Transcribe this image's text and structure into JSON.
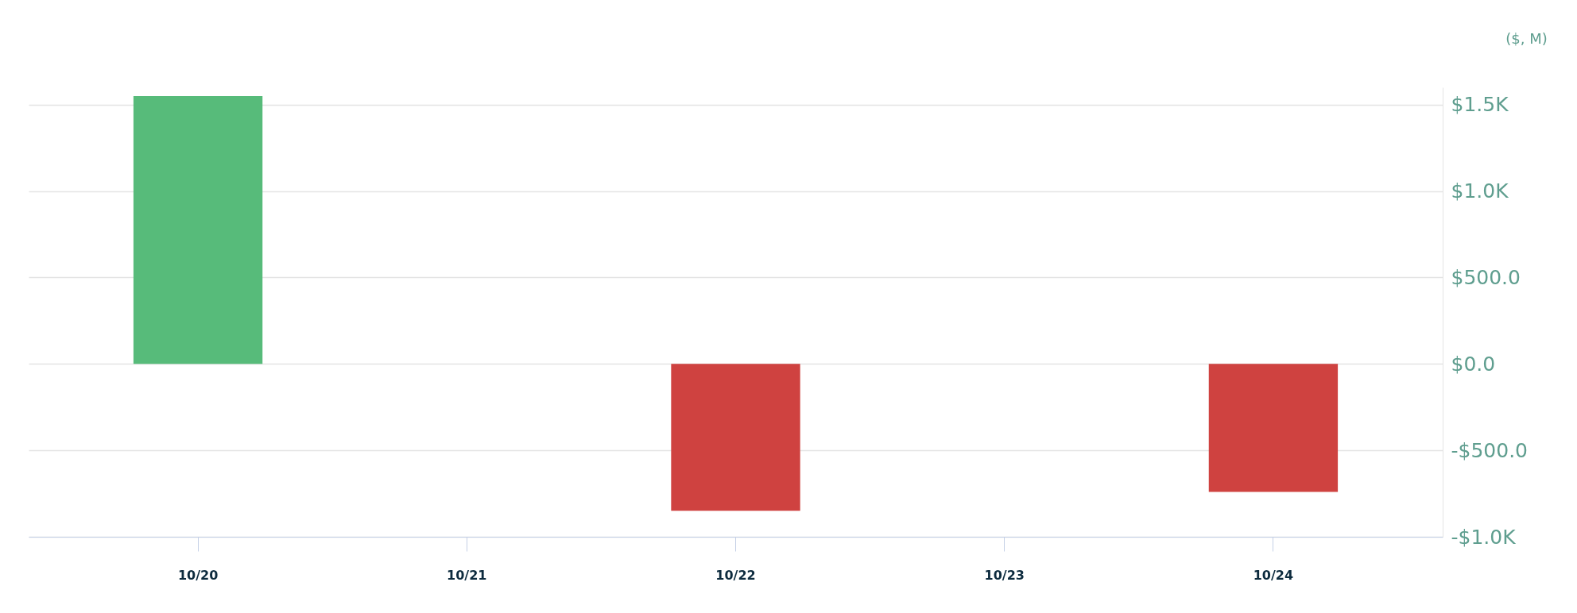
{
  "chart_data": {
    "type": "bar",
    "ylabel": "($, M)",
    "categories": [
      "10/20",
      "10/21",
      "10/22",
      "10/23",
      "10/24"
    ],
    "values": [
      1550,
      null,
      -850,
      null,
      -740
    ],
    "colors": [
      "#57bb7a",
      "#cf4240",
      "#cf4240",
      "#cf4240",
      "#cf4240"
    ],
    "ylim": [
      -1000,
      1600
    ],
    "yticks": [
      {
        "value": -1000,
        "label": "-$1.0K"
      },
      {
        "value": -500,
        "label": "-$500.0"
      },
      {
        "value": 0,
        "label": "$0.0"
      },
      {
        "value": 500,
        "label": "$500.0"
      },
      {
        "value": 1000,
        "label": "$1.0K"
      },
      {
        "value": 1500,
        "label": "$1.5K"
      }
    ],
    "grid": "y"
  }
}
